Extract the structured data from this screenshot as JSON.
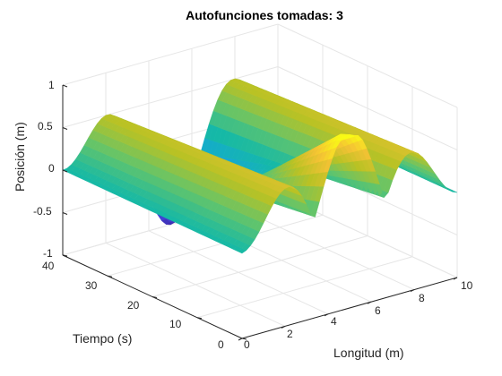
{
  "chart_data": {
    "type": "surface",
    "title": "Autofunciones tomadas: 3",
    "xlabel": "Longitud (m)",
    "ylabel": "Tiempo (s)",
    "zlabel": "Posición (m)",
    "xlim": [
      0,
      10
    ],
    "ylim": [
      0,
      40
    ],
    "zlim": [
      -1,
      1
    ],
    "xticks": [
      "0",
      "2",
      "4",
      "6",
      "8",
      "10"
    ],
    "yticks": [
      "0",
      "10",
      "20",
      "30",
      "40"
    ],
    "zticks": [
      "-1",
      "-0.5",
      "0",
      "0.5",
      "1"
    ],
    "grid": true,
    "colormap": "parula",
    "colormap_colors": [
      "#3e26a8",
      "#4457f6",
      "#1889f0",
      "#14a7d8",
      "#15b9a6",
      "#61c46c",
      "#b9c224",
      "#f5c235",
      "#f9fb15"
    ],
    "edge_color": "#c8c8c8",
    "surface": {
      "x_range": [
        0,
        10
      ],
      "y_range": [
        0,
        40
      ],
      "x_samples": 51,
      "y_samples": 41,
      "peak_positions_x": [
        1.8,
        5,
        8.2
      ],
      "trough_positions_x": [
        3.4,
        6.6
      ],
      "peak_z_at_time_0": [
        0.95,
        1.0,
        0.95
      ],
      "trough_z_at_time_0": [
        -0.1,
        -0.1
      ],
      "trough_z_at_time_40": [
        -1.0,
        -0.9
      ],
      "edge_z": [
        0,
        0
      ]
    }
  }
}
